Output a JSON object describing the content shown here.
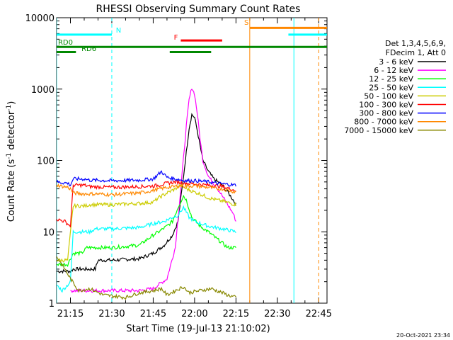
{
  "chart_data": {
    "type": "line",
    "title": "RHESSI Observing Summary Count Rates",
    "xlabel": "Start Time (19-Jul-13 21:10:02)",
    "ylabel": "Count Rate (s",
    "ylabel_sup1": "-1",
    "ylabel_mid": " detector",
    "ylabel_sup2": "-1",
    "ylabel_end": ")",
    "xlim_minutes": [
      0,
      98
    ],
    "ylim": [
      1,
      10000
    ],
    "y_scale": "log",
    "x_ticks": [
      {
        "label": "21:15",
        "m": 5
      },
      {
        "label": "21:30",
        "m": 20
      },
      {
        "label": "21:45",
        "m": 35
      },
      {
        "label": "22:00",
        "m": 50
      },
      {
        "label": "22:15",
        "m": 65
      },
      {
        "label": "22:30",
        "m": 80
      },
      {
        "label": "22:45",
        "m": 95
      }
    ],
    "y_ticks": [
      {
        "label": "1",
        "v": 1
      },
      {
        "label": "10",
        "v": 10
      },
      {
        "label": "100",
        "v": 100
      },
      {
        "label": "1000",
        "v": 1000
      },
      {
        "label": "10000",
        "v": 10000
      }
    ],
    "legend": {
      "header1": "Det 1,3,4,5,6,9,",
      "header2": "FDecim 1, Att 0",
      "placement": "right"
    },
    "series": [
      {
        "name": "3 - 6 keV",
        "color": "#000000",
        "points": [
          [
            0,
            2.8
          ],
          [
            5,
            2.8
          ],
          [
            6,
            3
          ],
          [
            10,
            3
          ],
          [
            14,
            3
          ],
          [
            15,
            4
          ],
          [
            20,
            4
          ],
          [
            30,
            4.2
          ],
          [
            35,
            5
          ],
          [
            39,
            6.5
          ],
          [
            42,
            9
          ],
          [
            44,
            14
          ],
          [
            46,
            60
          ],
          [
            48,
            280
          ],
          [
            49,
            440
          ],
          [
            50,
            400
          ],
          [
            51,
            260
          ],
          [
            52,
            160
          ],
          [
            53,
            100
          ],
          [
            55,
            70
          ],
          [
            57,
            55
          ],
          [
            60,
            45
          ],
          [
            62,
            36
          ],
          [
            64,
            28
          ],
          [
            65,
            24
          ]
        ]
      },
      {
        "name": "6 - 12 keV",
        "color": "#ff00ff",
        "points": [
          [
            5,
            1.5
          ],
          [
            10,
            1.5
          ],
          [
            20,
            1.5
          ],
          [
            30,
            1.5
          ],
          [
            35,
            1.6
          ],
          [
            40,
            2.2
          ],
          [
            43,
            6
          ],
          [
            45,
            40
          ],
          [
            47,
            300
          ],
          [
            48,
            700
          ],
          [
            49,
            1050
          ],
          [
            50,
            850
          ],
          [
            51,
            450
          ],
          [
            52,
            200
          ],
          [
            53,
            100
          ],
          [
            55,
            60
          ],
          [
            58,
            42
          ],
          [
            60,
            32
          ],
          [
            62,
            24
          ],
          [
            64,
            18
          ],
          [
            65,
            14
          ]
        ]
      },
      {
        "name": "12 - 25 keV",
        "color": "#00ff00",
        "points": [
          [
            0,
            3.5
          ],
          [
            4,
            3.5
          ],
          [
            6,
            5
          ],
          [
            9,
            5
          ],
          [
            11,
            6
          ],
          [
            20,
            6
          ],
          [
            30,
            6.5
          ],
          [
            35,
            9
          ],
          [
            37,
            10
          ],
          [
            40,
            12
          ],
          [
            42,
            14
          ],
          [
            44,
            22
          ],
          [
            46,
            32
          ],
          [
            47,
            28
          ],
          [
            49,
            16
          ],
          [
            52,
            12
          ],
          [
            55,
            10
          ],
          [
            58,
            8
          ],
          [
            60,
            7
          ],
          [
            62,
            6
          ],
          [
            65,
            6
          ]
        ]
      },
      {
        "name": "25 - 50 keV",
        "color": "#00ffff",
        "points": [
          [
            0,
            1.8
          ],
          [
            2,
            1.5
          ],
          [
            4,
            1.8
          ],
          [
            5,
            2
          ],
          [
            6,
            10
          ],
          [
            10,
            10
          ],
          [
            12,
            10
          ],
          [
            14,
            11
          ],
          [
            20,
            11
          ],
          [
            30,
            11.5
          ],
          [
            35,
            13
          ],
          [
            39,
            14
          ],
          [
            42,
            16
          ],
          [
            44,
            17
          ],
          [
            46,
            22
          ],
          [
            48,
            16
          ],
          [
            50,
            14
          ],
          [
            55,
            12
          ],
          [
            60,
            11
          ],
          [
            65,
            10
          ]
        ]
      },
      {
        "name": "50 - 100 keV",
        "color": "#cccc00",
        "points": [
          [
            0,
            4
          ],
          [
            4,
            4
          ],
          [
            6,
            23
          ],
          [
            10,
            23
          ],
          [
            12,
            24
          ],
          [
            20,
            24
          ],
          [
            30,
            25
          ],
          [
            35,
            26
          ],
          [
            37,
            30
          ],
          [
            40,
            35
          ],
          [
            43,
            40
          ],
          [
            45,
            45
          ],
          [
            47,
            40
          ],
          [
            50,
            36
          ],
          [
            52,
            34
          ],
          [
            55,
            30
          ],
          [
            58,
            28
          ],
          [
            60,
            27
          ],
          [
            65,
            24
          ]
        ]
      },
      {
        "name": "100 - 300 keV",
        "color": "#ff0000",
        "points": [
          [
            0,
            15
          ],
          [
            3,
            14
          ],
          [
            5,
            12
          ],
          [
            6,
            45
          ],
          [
            10,
            45
          ],
          [
            12,
            43
          ],
          [
            20,
            42
          ],
          [
            30,
            43
          ],
          [
            35,
            44
          ],
          [
            37,
            45
          ],
          [
            40,
            48
          ],
          [
            43,
            50
          ],
          [
            47,
            48
          ],
          [
            50,
            47
          ],
          [
            55,
            45
          ],
          [
            58,
            44
          ],
          [
            60,
            43
          ],
          [
            65,
            38
          ]
        ]
      },
      {
        "name": "300 - 800 keV",
        "color": "#0000ff",
        "points": [
          [
            0,
            50
          ],
          [
            4,
            48
          ],
          [
            5,
            45
          ],
          [
            6,
            55
          ],
          [
            10,
            55
          ],
          [
            12,
            53
          ],
          [
            20,
            52
          ],
          [
            30,
            53
          ],
          [
            35,
            55
          ],
          [
            38,
            70
          ],
          [
            40,
            58
          ],
          [
            43,
            55
          ],
          [
            47,
            52
          ],
          [
            50,
            52
          ],
          [
            55,
            50
          ],
          [
            58,
            48
          ],
          [
            60,
            47
          ],
          [
            65,
            45
          ]
        ]
      },
      {
        "name": "800 - 7000 keV",
        "color": "#ff8800",
        "points": [
          [
            0,
            45
          ],
          [
            4,
            42
          ],
          [
            5,
            40
          ],
          [
            6,
            35
          ],
          [
            10,
            34
          ],
          [
            15,
            34
          ],
          [
            20,
            33
          ],
          [
            25,
            34
          ],
          [
            30,
            35
          ],
          [
            35,
            38
          ],
          [
            40,
            42
          ],
          [
            45,
            44
          ],
          [
            50,
            44
          ],
          [
            55,
            42
          ],
          [
            58,
            40
          ],
          [
            60,
            40
          ],
          [
            65,
            36
          ]
        ]
      },
      {
        "name": "7000 - 15000 keV",
        "color": "#888800",
        "points": [
          [
            0,
            4.5
          ],
          [
            3,
            3
          ],
          [
            5,
            2.2
          ],
          [
            8,
            1.5
          ],
          [
            12,
            1.6
          ],
          [
            17,
            1.3
          ],
          [
            25,
            1.2
          ],
          [
            30,
            1.4
          ],
          [
            35,
            1.5
          ],
          [
            38,
            1.6
          ],
          [
            40,
            1.3
          ],
          [
            43,
            1.5
          ],
          [
            46,
            1.7
          ],
          [
            48,
            1.4
          ],
          [
            52,
            1.5
          ],
          [
            56,
            1.6
          ],
          [
            60,
            1.4
          ],
          [
            62,
            1.3
          ],
          [
            65,
            1.2
          ]
        ]
      }
    ],
    "annotations": {
      "N": "N",
      "F": "F",
      "S": "S",
      "RD0": "RD0",
      "RD6": "RD6"
    },
    "bars": [
      {
        "label_key": "N",
        "color": "#00ffff",
        "m0": 0,
        "m1": 20,
        "v": 5800
      },
      {
        "label_key": "N",
        "color": "#00ffff",
        "m0": 84,
        "m1": 98,
        "v": 5800
      },
      {
        "label_key": "F",
        "color": "#ff0000",
        "m0": 45,
        "m1": 60,
        "v": 4800
      },
      {
        "label_key": "S",
        "color": "#ff8800",
        "m0": 70,
        "m1": 98,
        "v": 7200
      },
      {
        "label_key": "RD0",
        "color": "#008800",
        "m0": 0,
        "m1": 98,
        "v": 3900
      },
      {
        "label_key": "RD6",
        "color": "#008800",
        "m0": 0,
        "m1": 7,
        "v": 3300
      },
      {
        "label_key": "RD6",
        "color": "#008800",
        "m0": 41,
        "m1": 56,
        "v": 3300
      }
    ],
    "vlines": [
      {
        "color": "#00ffff",
        "m": 0,
        "dashed": false
      },
      {
        "color": "#00ffff",
        "m": 20,
        "dashed": true
      },
      {
        "color": "#ff8800",
        "m": 70,
        "dashed": false
      },
      {
        "color": "#00ffff",
        "m": 86,
        "dashed": false
      },
      {
        "color": "#ff8800",
        "m": 95,
        "dashed": true
      }
    ]
  },
  "footer": {
    "date_stamp": "20-Oct-2021 23:34"
  }
}
